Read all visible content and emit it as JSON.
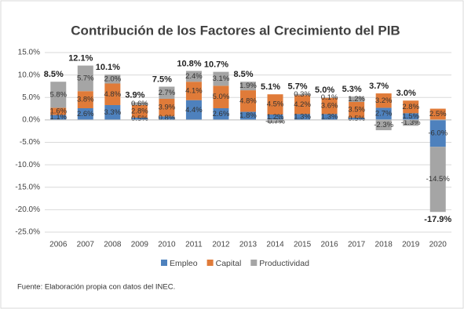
{
  "chart_data": {
    "type": "stacked_bar",
    "title": "Contribución de los Factores al Crecimiento del PIB",
    "source": "Fuente: Elaboración propia con datos del INEC.",
    "categories": [
      "2006",
      "2007",
      "2008",
      "2009",
      "2010",
      "2011",
      "2012",
      "2013",
      "2014",
      "2015",
      "2016",
      "2017",
      "2018",
      "2019",
      "2020"
    ],
    "series": [
      {
        "name": "Empleo",
        "color": "#4e81bd",
        "values": [
          1.1,
          2.6,
          3.3,
          0.5,
          0.8,
          4.4,
          2.6,
          1.8,
          1.2,
          1.3,
          1.3,
          0.5,
          2.7,
          1.5,
          -6.0
        ],
        "value_labels": [
          "1.1%",
          "2.6%",
          "3.3%",
          "0.5%",
          "0.8%",
          "4.4%",
          "2.6%",
          "1.8%",
          "1.2%",
          "1.3%",
          "1.3%",
          "0.5%",
          "2.7%",
          "1.5%",
          "-6.0%"
        ]
      },
      {
        "name": "Capital",
        "color": "#e07b39",
        "values": [
          1.6,
          3.8,
          4.8,
          2.8,
          3.9,
          4.1,
          5.0,
          4.8,
          4.5,
          4.2,
          3.6,
          3.5,
          3.2,
          2.8,
          2.5
        ],
        "value_labels": [
          "1.6%",
          "3.8%",
          "4.8%",
          "2.8%",
          "3.9%",
          "4.1%",
          "5.0%",
          "4.8%",
          "4.5%",
          "4.2%",
          "3.6%",
          "3.5%",
          "3.2%",
          "2.8%",
          "2.5%"
        ]
      },
      {
        "name": "Productividad",
        "color": "#a5a5a5",
        "values": [
          5.8,
          5.7,
          2.0,
          0.6,
          2.7,
          2.4,
          3.1,
          1.9,
          -0.7,
          0.3,
          0.1,
          1.2,
          -2.3,
          -1.3,
          -14.5
        ],
        "value_labels": [
          "5.8%",
          "5.7%",
          "2.0%",
          "0.6%",
          "2.7%",
          "2.4%",
          "3.1%",
          "1.9%",
          "-0.7%",
          "0.3%",
          "0.1%",
          "1.2%",
          "-2.3%",
          "-1.3%",
          "-14.5%"
        ]
      }
    ],
    "totals": {
      "values": [
        8.5,
        12.1,
        10.1,
        3.9,
        7.5,
        10.8,
        10.7,
        8.5,
        5.1,
        5.7,
        5.0,
        5.3,
        3.7,
        3.0,
        -17.9
      ],
      "value_labels": [
        "8.5%",
        "12.1%",
        "10.1%",
        "3.9%",
        "7.5%",
        "10.8%",
        "10.7%",
        "8.5%",
        "5.1%",
        "5.7%",
        "5.0%",
        "5.3%",
        "3.7%",
        "3.0%",
        "-17.9%"
      ]
    },
    "ylim": [
      -25,
      15
    ],
    "yticks": [
      {
        "value": -25,
        "label": "-25.0%"
      },
      {
        "value": -20,
        "label": "-20.0%"
      },
      {
        "value": -15,
        "label": "-15.0%"
      },
      {
        "value": -10,
        "label": "-10.0%"
      },
      {
        "value": -5,
        "label": "-5.0%"
      },
      {
        "value": 0,
        "label": "0.0%"
      },
      {
        "value": 5,
        "label": "5.0%"
      },
      {
        "value": 10,
        "label": "10.0%"
      },
      {
        "value": 15,
        "label": "15.0%"
      }
    ],
    "grid": true,
    "legend": "bottom"
  }
}
